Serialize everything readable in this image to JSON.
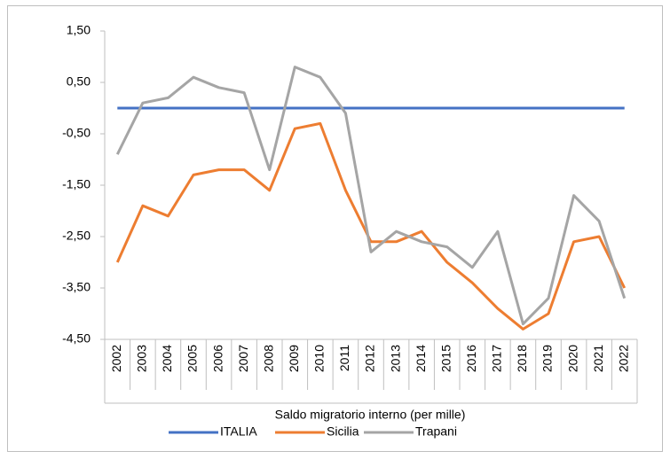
{
  "chart_data": {
    "type": "line",
    "x_label": "Saldo migratorio interno (per mille)",
    "categories": [
      "2002",
      "2003",
      "2004",
      "2005",
      "2006",
      "2007",
      "2008",
      "2009",
      "2010",
      "2011",
      "2012",
      "2013",
      "2014",
      "2015",
      "2016",
      "2017",
      "2018",
      "2019",
      "2020",
      "2021",
      "2022"
    ],
    "series": [
      {
        "name": "ITALIA",
        "color": "#4472c4",
        "values": [
          0,
          0,
          0,
          0,
          0,
          0,
          0,
          0,
          0,
          0,
          0,
          0,
          0,
          0,
          0,
          0,
          0,
          0,
          0,
          0,
          0
        ]
      },
      {
        "name": "Sicilia",
        "color": "#ed7d31",
        "values": [
          -3.0,
          -1.9,
          -2.1,
          -1.3,
          -1.2,
          -1.2,
          -1.6,
          -0.4,
          -0.3,
          -1.6,
          -2.6,
          -2.6,
          -2.4,
          -3.0,
          -3.4,
          -3.9,
          -4.3,
          -4.0,
          -2.6,
          -2.5,
          -3.5
        ]
      },
      {
        "name": "Trapani",
        "color": "#a5a5a5",
        "values": [
          -0.9,
          0.1,
          0.2,
          0.6,
          0.4,
          0.3,
          -1.2,
          0.8,
          0.6,
          -0.1,
          -2.8,
          -2.4,
          -2.6,
          -2.7,
          -3.1,
          -2.4,
          -4.2,
          -3.7,
          -1.7,
          -2.2,
          -3.7
        ]
      }
    ],
    "ylim": [
      -4.5,
      1.5
    ],
    "yticks": [
      {
        "value": -4.5,
        "label": "-4,50"
      },
      {
        "value": -3.5,
        "label": "-3,50"
      },
      {
        "value": -2.5,
        "label": "-2,50"
      },
      {
        "value": -1.5,
        "label": "-1,50"
      },
      {
        "value": -0.5,
        "label": "-0,50"
      },
      {
        "value": 0.5,
        "label": "0,50"
      },
      {
        "value": 1.5,
        "label": "1,50"
      }
    ],
    "legend": "bottom"
  }
}
